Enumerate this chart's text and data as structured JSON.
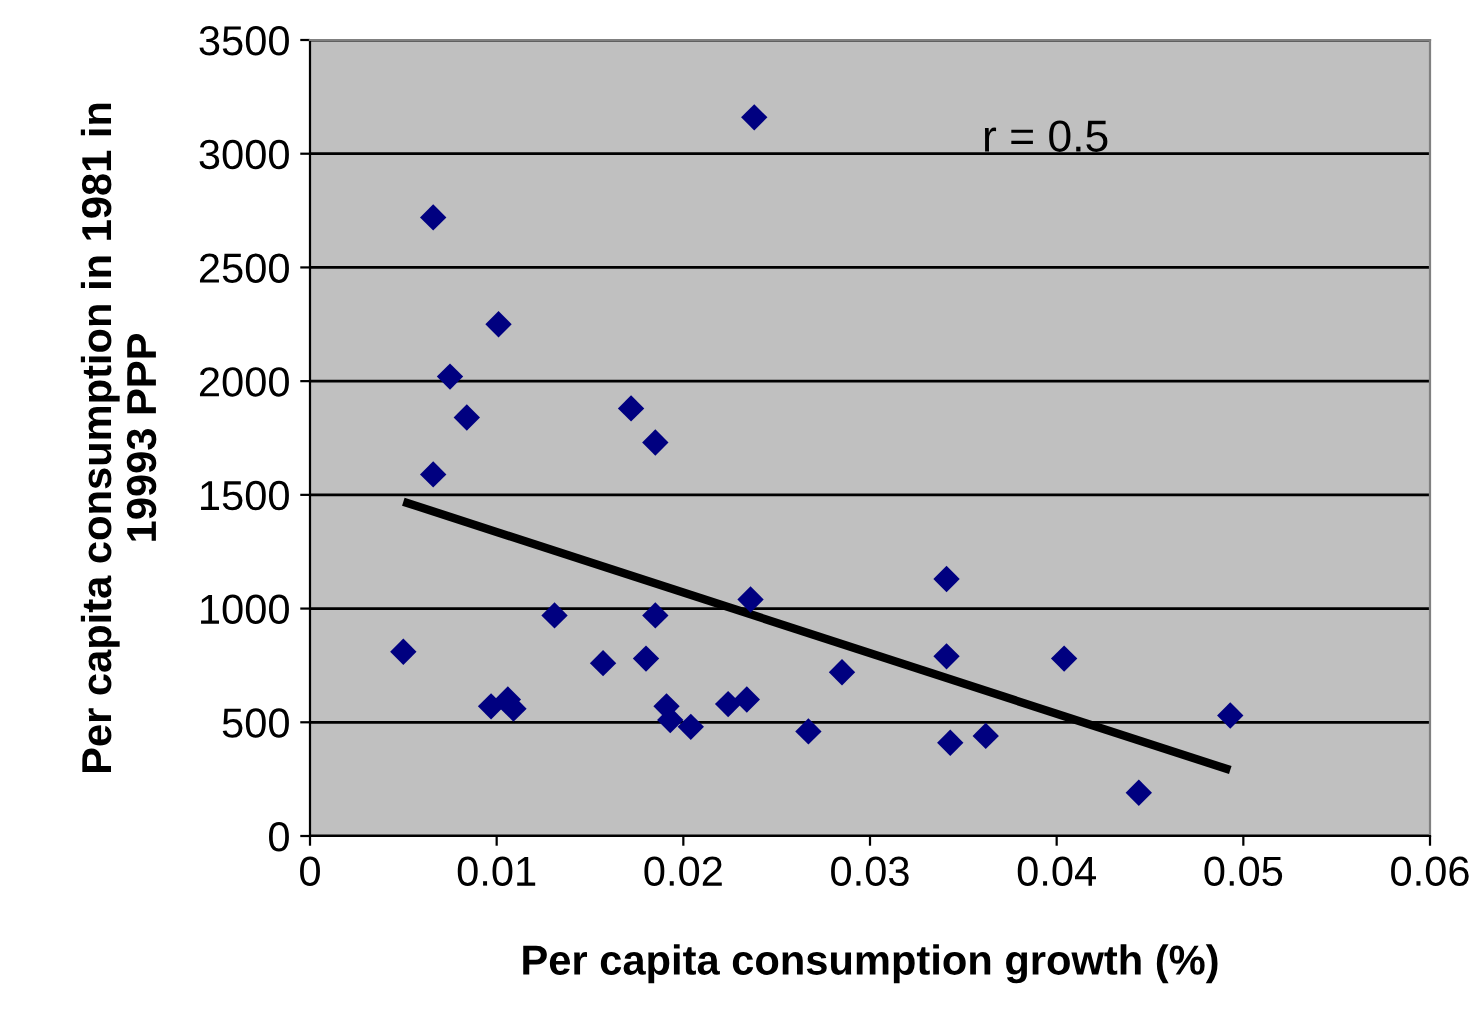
{
  "chart_data": {
    "type": "scatter",
    "xlabel": "Per capita consumption growth (%)",
    "ylabel": "Per capita consumption in 1981 in\n19993 PPP",
    "xlim": [
      0,
      0.06
    ],
    "xticks": [
      0,
      0.01,
      0.02,
      0.03,
      0.04,
      0.05,
      0.06
    ],
    "ylim": [
      0,
      3500
    ],
    "yticks": [
      0,
      500,
      1000,
      1500,
      2000,
      2500,
      3000,
      3500
    ],
    "grid": "y",
    "legend": false,
    "annotations": [
      "r = 0.5"
    ],
    "series": [
      {
        "marker": "diamond",
        "color": "#000080",
        "x": [
          0.005,
          0.0066,
          0.0066,
          0.0075,
          0.0084,
          0.0101,
          0.0097,
          0.0106,
          0.0109,
          0.0131,
          0.0157,
          0.0172,
          0.018,
          0.0185,
          0.0185,
          0.0191,
          0.0193,
          0.0204,
          0.0224,
          0.0234,
          0.0238,
          0.0236,
          0.0267,
          0.0285,
          0.0341,
          0.0341,
          0.0343,
          0.0362,
          0.0404,
          0.0444,
          0.0493
        ],
        "values": [
          810,
          2720,
          1590,
          2020,
          1840,
          2250,
          570,
          600,
          560,
          970,
          760,
          1880,
          780,
          1730,
          970,
          570,
          510,
          480,
          580,
          600,
          3160,
          1040,
          460,
          720,
          1130,
          790,
          410,
          440,
          780,
          190,
          530
        ]
      },
      {
        "type": "line",
        "marker": "none",
        "color": "#000000",
        "x": [
          0.005,
          0.0493
        ],
        "values": [
          1470,
          290
        ]
      }
    ]
  }
}
